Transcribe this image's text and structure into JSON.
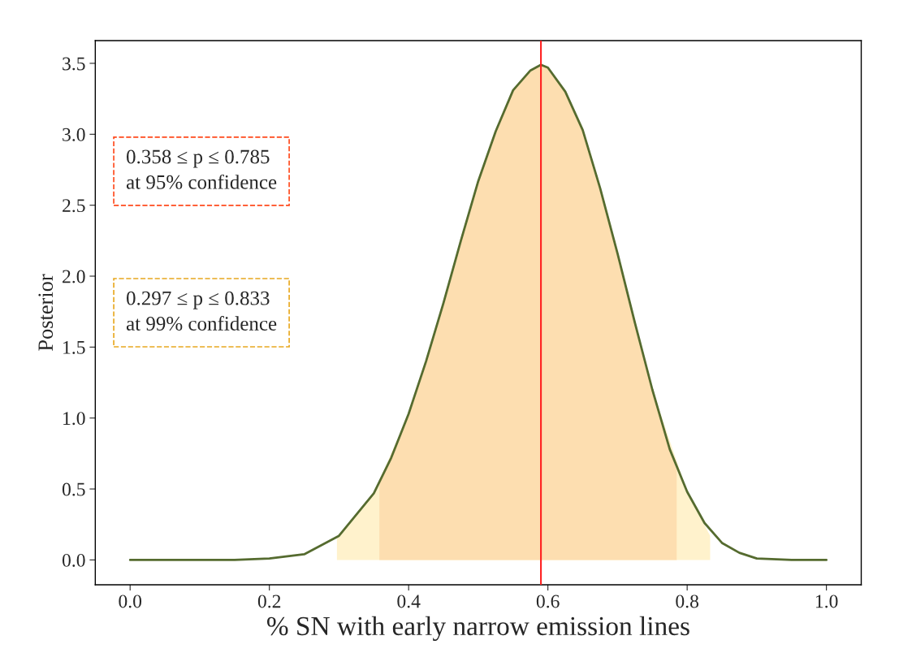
{
  "chart_data": {
    "type": "line",
    "xlabel": "% SN with early narrow emission lines",
    "ylabel": "Posterior",
    "xlim": [
      -0.05,
      1.05
    ],
    "ylim": [
      -0.175,
      3.66
    ],
    "xticks": [
      {
        "value": 0,
        "label": "0.0"
      },
      0.2,
      0.4,
      0.6,
      0.8,
      {
        "value": 1,
        "label": "1.0"
      }
    ],
    "yticks": [
      {
        "value": 0,
        "label": "0.0"
      },
      0.5,
      {
        "value": 1,
        "label": "1.0"
      },
      1.5,
      {
        "value": 2,
        "label": "2.0"
      },
      2.5,
      {
        "value": 3,
        "label": "3.0"
      },
      3.5
    ],
    "grid": false,
    "legend": false,
    "series": [
      {
        "type": "area",
        "color": "#fff2cc",
        "x": [
          0.297,
          0.3,
          0.35,
          0.4,
          0.45,
          0.5,
          0.55,
          0.59,
          0.6,
          0.65,
          0.7,
          0.75,
          0.8,
          0.833
        ],
        "values": [
          0.15,
          0.17,
          0.47,
          1.03,
          1.81,
          2.67,
          3.31,
          3.49,
          3.47,
          3.03,
          2.16,
          1.2,
          0.48,
          0.17
        ]
      },
      {
        "type": "area",
        "color": "#fddeb0",
        "x": [
          0.358,
          0.375,
          0.4,
          0.425,
          0.45,
          0.475,
          0.5,
          0.525,
          0.55,
          0.575,
          0.59,
          0.6,
          0.625,
          0.65,
          0.675,
          0.7,
          0.725,
          0.75,
          0.775,
          0.785
        ],
        "values": [
          0.55,
          0.72,
          1.03,
          1.4,
          1.81,
          2.25,
          2.67,
          3.02,
          3.31,
          3.45,
          3.49,
          3.47,
          3.3,
          3.03,
          2.62,
          2.16,
          1.67,
          1.2,
          0.78,
          0.63
        ]
      },
      {
        "color": "#556b2f",
        "x": [
          0,
          0.05,
          0.1,
          0.15,
          0.2,
          0.25,
          0.3,
          0.35,
          0.375,
          0.4,
          0.425,
          0.45,
          0.475,
          0.5,
          0.525,
          0.55,
          0.575,
          0.59,
          0.6,
          0.625,
          0.65,
          0.675,
          0.7,
          0.725,
          0.75,
          0.775,
          0.8,
          0.825,
          0.85,
          0.875,
          0.9,
          0.95,
          1.0
        ],
        "values": [
          0,
          0,
          0,
          0,
          0.01,
          0.04,
          0.17,
          0.47,
          0.72,
          1.03,
          1.4,
          1.81,
          2.25,
          2.67,
          3.02,
          3.31,
          3.45,
          3.49,
          3.47,
          3.3,
          3.03,
          2.62,
          2.16,
          1.67,
          1.2,
          0.78,
          0.48,
          0.26,
          0.12,
          0.05,
          0.01,
          0,
          0
        ]
      }
    ],
    "ref_lines": [
      {
        "axis": "x",
        "value": 0.59,
        "color": "#ff2020"
      }
    ],
    "annotations": [
      "0.358 ≤ p ≤ 0.785\nat 95% confidence",
      "0.297 ≤ p ≤ 0.833\nat 99% confidence"
    ]
  }
}
